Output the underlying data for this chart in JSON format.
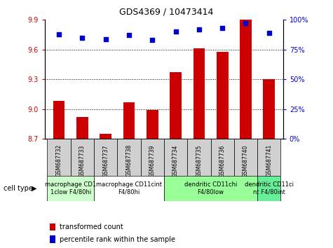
{
  "title": "GDS4369 / 10473414",
  "samples": [
    "GSM687732",
    "GSM687733",
    "GSM687737",
    "GSM687738",
    "GSM687739",
    "GSM687734",
    "GSM687735",
    "GSM687736",
    "GSM687740",
    "GSM687741"
  ],
  "bar_values": [
    9.08,
    8.92,
    8.75,
    9.07,
    8.99,
    9.37,
    9.61,
    9.58,
    9.93,
    9.3
  ],
  "scatter_values": [
    88,
    85,
    84,
    87,
    83,
    90,
    92,
    93,
    97,
    89
  ],
  "bar_color": "#cc0000",
  "scatter_color": "#0000cc",
  "ylim_left": [
    8.7,
    9.9
  ],
  "ylim_right": [
    0,
    100
  ],
  "yticks_left": [
    8.7,
    9.0,
    9.3,
    9.6,
    9.9
  ],
  "yticks_right": [
    0,
    25,
    50,
    75,
    100
  ],
  "hlines": [
    9.0,
    9.3,
    9.6
  ],
  "groups": [
    {
      "cols": [
        0,
        1
      ],
      "label": "macrophage CD1\n1clow F4/80hi",
      "color": "#ccffcc"
    },
    {
      "cols": [
        2,
        3,
        4
      ],
      "label": "macrophage CD11cint\nF4/80hi",
      "color": "#ffffff"
    },
    {
      "cols": [
        5,
        6,
        7,
        8
      ],
      "label": "dendritic CD11chi\nF4/80low",
      "color": "#99ff99"
    },
    {
      "cols": [
        9
      ],
      "label": "dendritic CD11ci\nnt F4/80int",
      "color": "#66ee99"
    }
  ],
  "cell_type_label": "cell type",
  "legend_bar_label": "transformed count",
  "legend_scatter_label": "percentile rank within the sample",
  "tick_color_left": "#cc0000",
  "tick_color_right": "#0000cc",
  "bg_color": "#ffffff",
  "plot_bg": "#ffffff",
  "tick_label_bg": "#d0d0d0",
  "title_fontsize": 9,
  "tick_fontsize": 7,
  "sample_fontsize": 5.5,
  "group_fontsize": 6,
  "legend_fontsize": 7
}
